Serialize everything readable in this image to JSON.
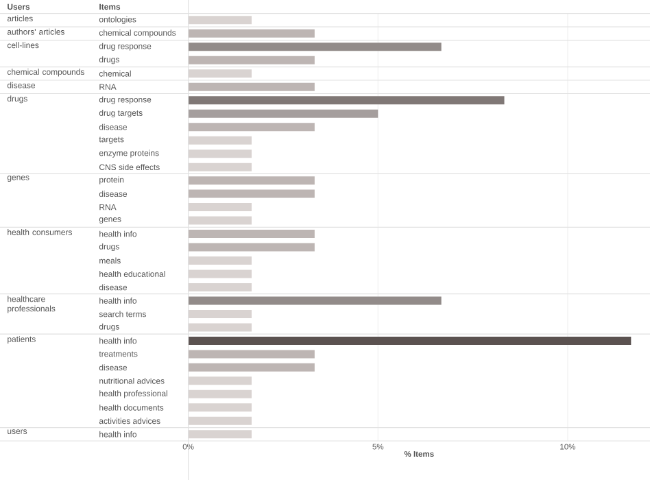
{
  "chart_data": {
    "type": "bar",
    "orientation": "horizontal",
    "xlabel": "% Items",
    "ylabel": "Items",
    "categories": [
      "ontologies",
      "chemical compounds",
      "drug response",
      "drugs",
      "chemical",
      "RNA",
      "drug response",
      "drug targets",
      "disease",
      "targets",
      "enzyme proteins",
      "CNS side effects",
      "protein",
      "disease",
      "RNA",
      "genes",
      "health info",
      "drugs",
      "meals",
      "health educational",
      "disease",
      "health info",
      "search terms",
      "drugs",
      "health info",
      "treatments",
      "disease",
      "nutritional advices",
      "health professional",
      "health documents",
      "activities advices",
      "health info"
    ],
    "values": [
      1.67,
      3.33,
      6.67,
      3.33,
      1.67,
      3.33,
      8.33,
      5,
      3.33,
      1.67,
      1.67,
      1.67,
      3.33,
      3.33,
      1.67,
      1.67,
      3.33,
      3.33,
      1.67,
      1.67,
      1.67,
      6.67,
      1.67,
      1.67,
      11.67,
      3.33,
      3.33,
      1.67,
      1.67,
      1.67,
      1.67,
      1.67
    ],
    "colors": [
      "#d9d3d1",
      "#bdb5b3",
      "#928b89",
      "#bdb5b3",
      "#d9d3d1",
      "#bdb5b3",
      "#807876",
      "#a59e9d",
      "#bdb5b3",
      "#d9d3d1",
      "#d9d3d1",
      "#d9d3d1",
      "#bdb5b3",
      "#bdb5b3",
      "#d9d3d1",
      "#d9d3d1",
      "#bdb5b3",
      "#bdb5b3",
      "#d9d3d1",
      "#d9d3d1",
      "#d9d3d1",
      "#928b89",
      "#d9d3d1",
      "#d9d3d1",
      "#5b5250",
      "#bdb5b3",
      "#bdb5b3",
      "#d9d3d1",
      "#d9d3d1",
      "#d9d3d1",
      "#d9d3d1",
      "#d9d3d1"
    ],
    "xlim": [
      0,
      12.17
    ],
    "xticks": [
      {
        "value": 0,
        "label": "0%"
      },
      {
        "value": 5,
        "label": "5%"
      },
      {
        "value": 10,
        "label": "10%"
      }
    ],
    "grid": "x",
    "annotations": [
      "Users",
      "articles",
      "authors' articles",
      "cell-lines",
      "chemical compounds",
      "disease",
      "drugs",
      "genes",
      "health consumers",
      "healthcare professionals",
      "patients",
      "users"
    ]
  }
}
